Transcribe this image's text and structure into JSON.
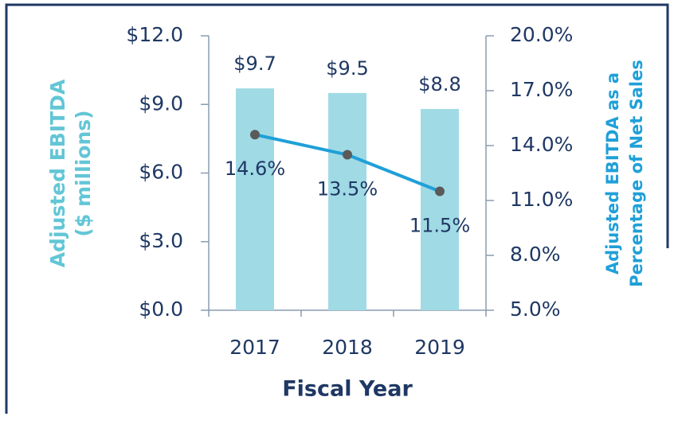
{
  "chart_data": {
    "type": "bar",
    "categories": [
      "2017",
      "2018",
      "2019"
    ],
    "xlabel": "Fiscal Year",
    "ylabel": [
      "Adjusted EBITDA",
      "($ millions)"
    ],
    "y2label": [
      "Adjusted EBITDA as a",
      "Percentage of Net Sales"
    ],
    "ylim": [
      0,
      12
    ],
    "yticks": [
      {
        "value": 0,
        "label": "$0.0"
      },
      {
        "value": 3,
        "label": "$3.0"
      },
      {
        "value": 6,
        "label": "$6.0"
      },
      {
        "value": 9,
        "label": "$9.0"
      },
      {
        "value": 12,
        "label": "$12.0"
      }
    ],
    "y2lim": [
      5,
      20
    ],
    "y2ticks": [
      {
        "value": 5,
        "label": "5.0%"
      },
      {
        "value": 8,
        "label": "8.0%"
      },
      {
        "value": 11,
        "label": "11.0%"
      },
      {
        "value": 14,
        "label": "14.0%"
      },
      {
        "value": 17,
        "label": "17.0%"
      },
      {
        "value": 20,
        "label": "20.0%"
      }
    ],
    "series": [
      {
        "type": "bar",
        "color": "#a0dae5",
        "values": [
          9.7,
          9.5,
          8.8
        ],
        "value_labels": [
          "$9.7",
          "$9.5",
          "$8.8"
        ]
      },
      {
        "type": "line",
        "axis": "y2",
        "color": "#1fa0d8",
        "marker_color": "#5a5a5a",
        "values": [
          14.6,
          13.5,
          11.5
        ],
        "value_labels": [
          "14.6%",
          "13.5%",
          "11.5%"
        ]
      }
    ]
  }
}
